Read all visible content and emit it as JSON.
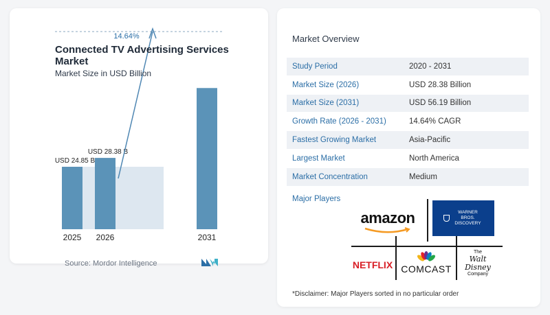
{
  "chart": {
    "title": "Connected TV Advertising Services Market",
    "subtitle": "Market Size in USD Billion",
    "source": "Source:  Mordor Intelligence",
    "cagr_label": "14.64%"
  },
  "chart_data": {
    "type": "bar",
    "categories": [
      "2025",
      "2026",
      "2031"
    ],
    "values": [
      24.85,
      28.38,
      56.19
    ],
    "data_labels": [
      "USD 24.85 B",
      "USD 28.38 B",
      ""
    ],
    "title": "Connected TV Advertising Services Market",
    "subtitle": "Market Size in USD Billion",
    "xlabel": "",
    "ylabel": "",
    "ylim": [
      0,
      62
    ],
    "grid": false,
    "annotations": [
      "14.64%"
    ],
    "colors": {
      "bar": "#5b93b8",
      "bar_light": "#7fb0d0",
      "band": "#dde7f0",
      "arrow": "#4f87b3"
    }
  },
  "overview": {
    "title": "Market Overview",
    "rows": [
      {
        "label": "Study Period",
        "value": "2020 - 2031"
      },
      {
        "label": "Market Size (2026)",
        "value": "USD 28.38 Billion"
      },
      {
        "label": "Market Size (2031)",
        "value": "USD 56.19 Billion"
      },
      {
        "label": "Growth Rate (2026 - 2031)",
        "value": "14.64% CAGR"
      },
      {
        "label": "Fastest Growing Market",
        "value": "Asia-Pacific"
      },
      {
        "label": "Largest Market",
        "value": "North America"
      },
      {
        "label": "Market Concentration",
        "value": "Medium"
      }
    ],
    "major_players_label": "Major Players",
    "players": {
      "amazon": "amazon",
      "warner": "WARNER BROS. DISCOVERY",
      "netflix": "NETFLIX",
      "comcast": "COMCAST",
      "disney_top": "The",
      "disney_mid": "Walt Disney",
      "disney_bottom": "Company"
    },
    "disclaimer": "*Disclaimer: Major Players sorted in no particular order"
  }
}
